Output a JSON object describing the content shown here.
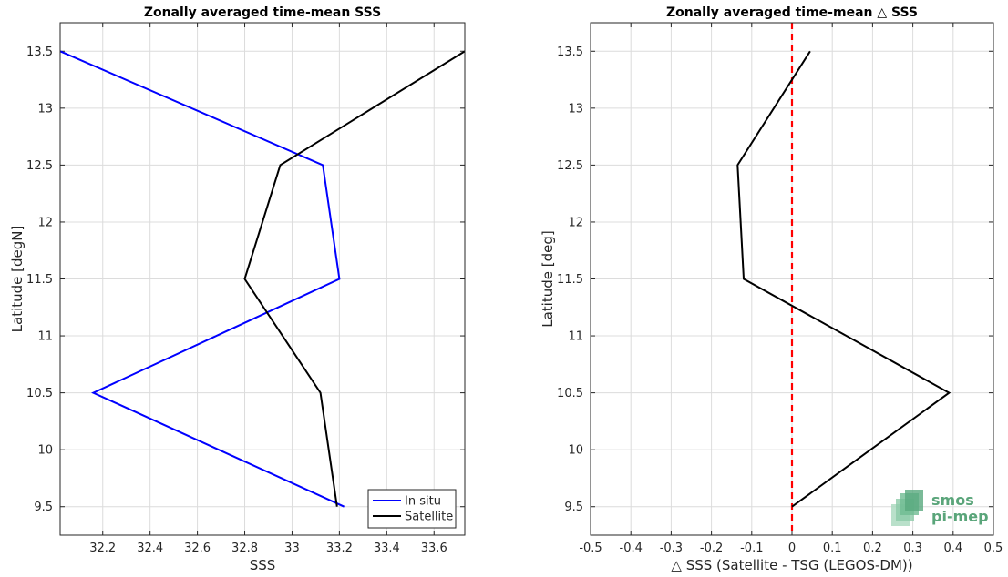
{
  "chart_data": [
    {
      "type": "line",
      "title": "Zonally averaged time-mean SSS",
      "xlabel": "SSS",
      "ylabel": "Latitude [degN]",
      "xlim": [
        32.02,
        33.73
      ],
      "ylim": [
        9.25,
        13.75
      ],
      "xticks": [
        "32.2",
        "32.4",
        "32.6",
        "32.8",
        "33",
        "33.2",
        "33.4",
        "33.6"
      ],
      "yticks": [
        "9.5",
        "10",
        "10.5",
        "11",
        "11.5",
        "12",
        "12.5",
        "13",
        "13.5"
      ],
      "grid": true,
      "legend_position": "bottom-right",
      "series": [
        {
          "name": "In situ",
          "color": "#0000ff",
          "x": [
            33.22,
            32.16,
            33.2,
            33.13,
            32.02
          ],
          "y": [
            9.5,
            10.5,
            11.5,
            12.5,
            13.5
          ]
        },
        {
          "name": "Satellite",
          "color": "#000000",
          "x": [
            33.19,
            33.12,
            32.8,
            32.95,
            33.73
          ],
          "y": [
            9.5,
            10.5,
            11.5,
            12.5,
            13.5
          ]
        }
      ]
    },
    {
      "type": "line",
      "title": "Zonally averaged time-mean △ SSS",
      "xlabel": "△ SSS (Satellite - TSG (LEGOS-DM))",
      "ylabel": "Latitude [deg]",
      "xlim": [
        -0.5,
        0.5
      ],
      "ylim": [
        9.25,
        13.75
      ],
      "xticks": [
        "-0.5",
        "-0.4",
        "-0.3",
        "-0.2",
        "-0.1",
        "0",
        "0.1",
        "0.2",
        "0.3",
        "0.4",
        "0.5"
      ],
      "yticks": [
        "9.5",
        "10",
        "10.5",
        "11",
        "11.5",
        "12",
        "12.5",
        "13",
        "13.5"
      ],
      "grid": true,
      "reference_line": {
        "x": 0,
        "color": "#ff0000",
        "style": "dashed"
      },
      "series": [
        {
          "color": "#000000",
          "x": [
            0.0,
            0.39,
            -0.12,
            -0.135,
            0.045
          ],
          "y": [
            9.5,
            10.5,
            11.5,
            12.5,
            13.5
          ]
        }
      ]
    }
  ],
  "logo": {
    "line1": "smos",
    "line2": "pi-mep",
    "color": "#5aa57a"
  }
}
